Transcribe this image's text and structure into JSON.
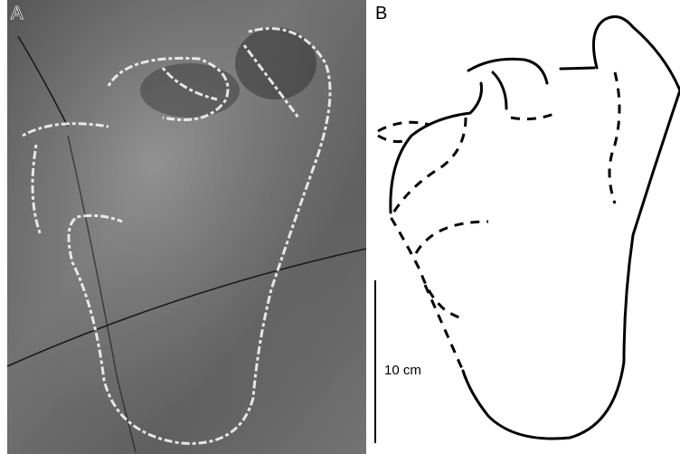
{
  "panels": [
    {
      "label": "A"
    },
    {
      "label": "B"
    }
  ],
  "scale_bar": {
    "label": "10 cm"
  }
}
